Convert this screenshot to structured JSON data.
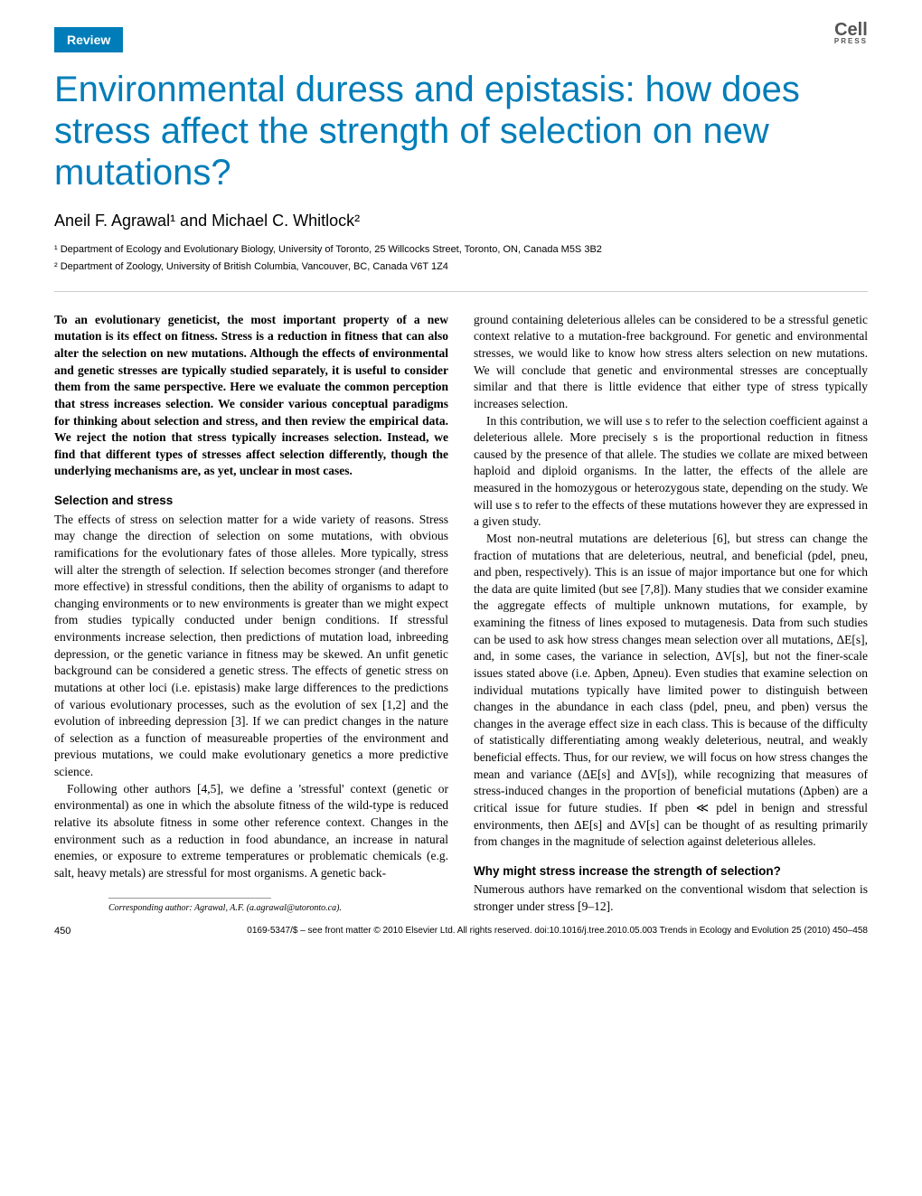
{
  "header": {
    "badge": "Review",
    "logo_main": "Cell",
    "logo_sub": "PRESS"
  },
  "title": "Environmental duress and epistasis: how does stress affect the strength of selection on new mutations?",
  "authors": "Aneil F. Agrawal¹ and Michael C. Whitlock²",
  "affiliations": {
    "a1": "¹ Department of Ecology and Evolutionary Biology, University of Toronto, 25 Willcocks Street, Toronto, ON, Canada M5S 3B2",
    "a2": "² Department of Zoology, University of British Columbia, Vancouver, BC, Canada V6T 1Z4"
  },
  "abstract": "To an evolutionary geneticist, the most important property of a new mutation is its effect on fitness. Stress is a reduction in fitness that can also alter the selection on new mutations. Although the effects of environmental and genetic stresses are typically studied separately, it is useful to consider them from the same perspective. Here we evaluate the common perception that stress increases selection. We consider various conceptual paradigms for thinking about selection and stress, and then review the empirical data. We reject the notion that stress typically increases selection. Instead, we find that different types of stresses affect selection differently, though the underlying mechanisms are, as yet, unclear in most cases.",
  "section1_heading": "Selection and stress",
  "section1_p1": "The effects of stress on selection matter for a wide variety of reasons. Stress may change the direction of selection on some mutations, with obvious ramifications for the evolutionary fates of those alleles. More typically, stress will alter the strength of selection. If selection becomes stronger (and therefore more effective) in stressful conditions, then the ability of organisms to adapt to changing environments or to new environments is greater than we might expect from studies typically conducted under benign conditions. If stressful environments increase selection, then predictions of mutation load, inbreeding depression, or the genetic variance in fitness may be skewed. An unfit genetic background can be considered a genetic stress. The effects of genetic stress on mutations at other loci (i.e. epistasis) make large differences to the predictions of various evolutionary processes, such as the evolution of sex [1,2] and the evolution of inbreeding depression [3]. If we can predict changes in the nature of selection as a function of measureable properties of the environment and previous mutations, we could make evolutionary genetics a more predictive science.",
  "section1_p2": "Following other authors [4,5], we define a 'stressful' context (genetic or environmental) as one in which the absolute fitness of the wild-type is reduced relative its absolute fitness in some other reference context. Changes in the environment such as a reduction in food abundance, an increase in natural enemies, or exposure to extreme temperatures or problematic chemicals (e.g. salt, heavy metals) are stressful for most organisms. A genetic back-",
  "col2_p1": "ground containing deleterious alleles can be considered to be a stressful genetic context relative to a mutation-free background. For genetic and environmental stresses, we would like to know how stress alters selection on new mutations. We will conclude that genetic and environmental stresses are conceptually similar and that there is little evidence that either type of stress typically increases selection.",
  "col2_p2": "In this contribution, we will use s to refer to the selection coefficient against a deleterious allele. More precisely s is the proportional reduction in fitness caused by the presence of that allele. The studies we collate are mixed between haploid and diploid organisms. In the latter, the effects of the allele are measured in the homozygous or heterozygous state, depending on the study. We will use s to refer to the effects of these mutations however they are expressed in a given study.",
  "col2_p3": "Most non-neutral mutations are deleterious [6], but stress can change the fraction of mutations that are deleterious, neutral, and beneficial (pdel, pneu, and pben, respectively). This is an issue of major importance but one for which the data are quite limited (but see [7,8]). Many studies that we consider examine the aggregate effects of multiple unknown mutations, for example, by examining the fitness of lines exposed to mutagenesis. Data from such studies can be used to ask how stress changes mean selection over all mutations, ΔE[s], and, in some cases, the variance in selection, ΔV[s], but not the finer-scale issues stated above (i.e. Δpben, Δpneu). Even studies that examine selection on individual mutations typically have limited power to distinguish between changes in the abundance in each class (pdel, pneu, and pben) versus the changes in the average effect size in each class. This is because of the difficulty of statistically differentiating among weakly deleterious, neutral, and weakly beneficial effects. Thus, for our review, we will focus on how stress changes the mean and variance (ΔE[s] and ΔV[s]), while recognizing that measures of stress-induced changes in the proportion of beneficial mutations (Δpben) are a critical issue for future studies. If pben ≪ pdel in benign and stressful environments, then ΔE[s] and ΔV[s] can be thought of as resulting primarily from changes in the magnitude of selection against deleterious alleles.",
  "section2_heading": "Why might stress increase the strength of selection?",
  "section2_p1": "Numerous authors have remarked on the conventional wisdom that selection is stronger under stress [9–12].",
  "corresponding": "Corresponding author: Agrawal, A.F. (a.agrawal@utoronto.ca).",
  "footer": {
    "page": "450",
    "copyright": "0169-5347/$ – see front matter © 2010 Elsevier Ltd. All rights reserved. doi:10.1016/j.tree.2010.05.003  Trends in Ecology and Evolution 25 (2010) 450–458"
  },
  "colors": {
    "brand": "#007db8",
    "text": "#000000",
    "background": "#ffffff"
  }
}
